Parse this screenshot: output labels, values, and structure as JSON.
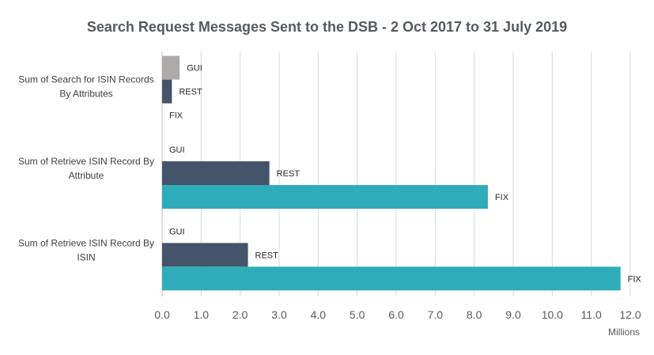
{
  "chart_data": {
    "type": "bar",
    "orientation": "horizontal",
    "title": "Search Request Messages Sent to the DSB - 2 Oct 2017 to 31 July 2019",
    "unit": "Millions",
    "categories": [
      [
        "Sum of Search for ISIN Records",
        "By Attributes"
      ],
      [
        "Sum of Retrieve ISIN Record By",
        "Attribute"
      ],
      [
        "Sum of Retrieve ISIN Record By",
        "ISIN"
      ]
    ],
    "series": [
      {
        "name": "GUI",
        "color": "#aeaaaa",
        "values": [
          0.45,
          0.0,
          0.0
        ]
      },
      {
        "name": "REST",
        "color": "#44546a",
        "values": [
          0.25,
          2.75,
          2.2
        ]
      },
      {
        "name": "FIX",
        "color": "#2eacb9",
        "values": [
          0.0,
          8.35,
          11.75
        ]
      }
    ],
    "xlim": [
      0,
      12
    ],
    "xticks": [
      "0.0",
      "1.0",
      "2.0",
      "3.0",
      "4.0",
      "5.0",
      "6.0",
      "7.0",
      "8.0",
      "9.0",
      "10.0",
      "11.0",
      "12.0"
    ],
    "grid": true,
    "legend": "none"
  }
}
